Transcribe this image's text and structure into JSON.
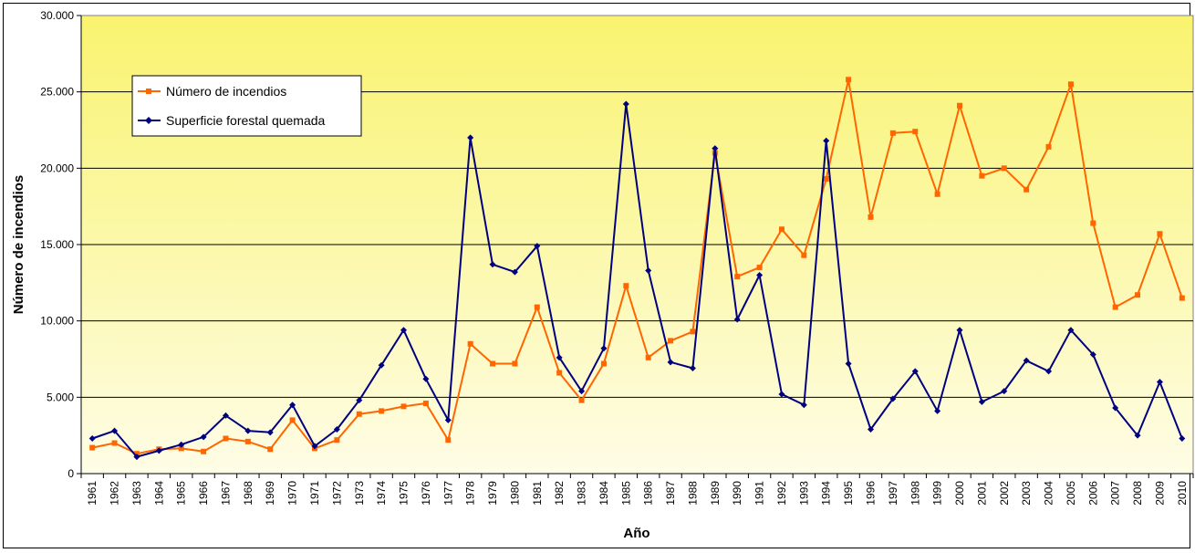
{
  "chart_data": {
    "type": "line",
    "title": "",
    "xlabel": "Año",
    "ylabel": "Número de incendios",
    "ylim": [
      0,
      30000
    ],
    "yticks": [
      0,
      5000,
      10000,
      15000,
      20000,
      25000,
      30000
    ],
    "ytick_labels": [
      "0",
      "5.000",
      "10.000",
      "15.000",
      "20.000",
      "25.000",
      "30.000"
    ],
    "grid": true,
    "legend_position": "upper-left",
    "background": {
      "top": "#f9f36f",
      "bottom": "#fefde6"
    },
    "categories": [
      "1961",
      "1962",
      "1963",
      "1964",
      "1965",
      "1966",
      "1967",
      "1968",
      "1969",
      "1970",
      "1971",
      "1972",
      "1973",
      "1974",
      "1975",
      "1976",
      "1977",
      "1978",
      "1979",
      "1980",
      "1981",
      "1982",
      "1983",
      "1984",
      "1985",
      "1986",
      "1987",
      "1988",
      "1989",
      "1990",
      "1991",
      "1992",
      "1993",
      "1994",
      "1995",
      "1996",
      "1997",
      "1998",
      "1999",
      "2000",
      "2001",
      "2002",
      "2003",
      "2004",
      "2005",
      "2006",
      "2007",
      "2008",
      "2009",
      "2010"
    ],
    "series": [
      {
        "name": "Número de incendios",
        "color": "#ff6600",
        "marker": "square",
        "values": [
          1700,
          2000,
          1300,
          1600,
          1650,
          1450,
          2300,
          2100,
          1600,
          3500,
          1650,
          2200,
          3900,
          4100,
          4400,
          4600,
          2200,
          8500,
          7200,
          7200,
          10900,
          6600,
          4800,
          7200,
          12300,
          7600,
          8700,
          9300,
          21000,
          12900,
          13500,
          16000,
          14300,
          19300,
          25800,
          16800,
          22300,
          22400,
          18300,
          24100,
          19500,
          20000,
          18600,
          21400,
          25500,
          16400,
          10900,
          11700,
          15700,
          11500
        ]
      },
      {
        "name": "Superficie forestal quemada",
        "color": "#000080",
        "marker": "diamond",
        "values": [
          2300,
          2800,
          1100,
          1500,
          1900,
          2400,
          3800,
          2800,
          2700,
          4500,
          1800,
          2900,
          4800,
          7100,
          9400,
          6200,
          3500,
          22000,
          13700,
          13200,
          14900,
          7600,
          5400,
          8200,
          24200,
          13300,
          7300,
          6900,
          21300,
          10100,
          13000,
          5200,
          4500,
          21800,
          7200,
          2900,
          4900,
          6700,
          4100,
          9400,
          4700,
          5400,
          7400,
          6700,
          9400,
          7800,
          4300,
          2500,
          6000,
          2300
        ]
      }
    ]
  }
}
